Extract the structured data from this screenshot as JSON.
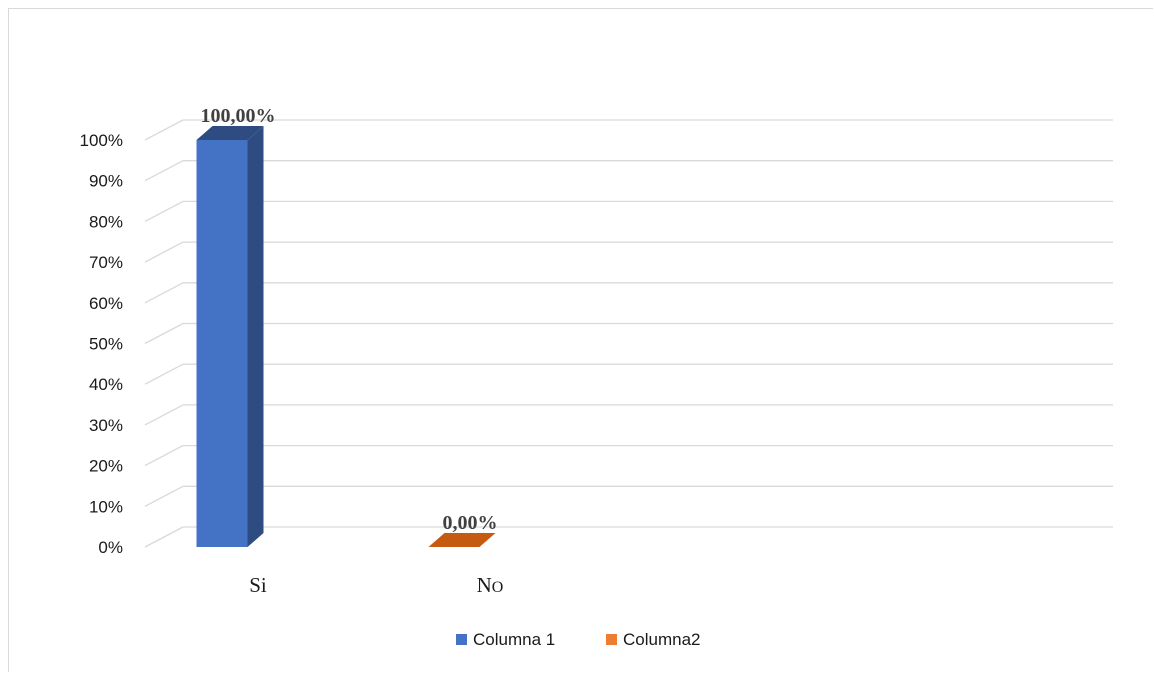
{
  "chart_data": {
    "type": "bar",
    "style": "3d-clustered-column",
    "categories": [
      "Si",
      "No"
    ],
    "category_display": [
      "Si",
      "NO"
    ],
    "series": [
      {
        "name": "Columna 1",
        "values": [
          1.0,
          null
        ],
        "color": "#4472C4",
        "side_color": "#2F4C82"
      },
      {
        "name": "Columna2",
        "values": [
          null,
          0.0
        ],
        "color": "#ED7D31",
        "side_color": "#C55A11"
      }
    ],
    "data_labels": [
      "100,00%",
      "0,00%"
    ],
    "y_ticks": [
      "0%",
      "10%",
      "20%",
      "30%",
      "40%",
      "50%",
      "60%",
      "70%",
      "80%",
      "90%",
      "100%"
    ],
    "ylim": [
      0,
      1
    ],
    "grid": true,
    "legend": {
      "position": "bottom",
      "entries": [
        "Columna 1",
        "Columna2"
      ]
    }
  }
}
